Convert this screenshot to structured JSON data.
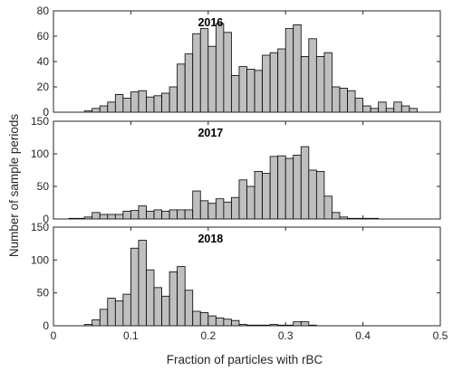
{
  "chart_data": {
    "type": "bar",
    "xlabel": "Fraction of particles with rBC",
    "ylabel": "Number of sample periods",
    "x_ticks": [
      0,
      0.1,
      0.2,
      0.3,
      0.4,
      0.5
    ],
    "xlim": [
      0,
      0.5
    ],
    "bin_width": 0.01,
    "panels": [
      {
        "title": "2016",
        "ylim": [
          0,
          80
        ],
        "y_ticks": [
          0,
          20,
          40,
          60,
          80
        ],
        "bin_starts": [
          0.04,
          0.05,
          0.06,
          0.07,
          0.08,
          0.09,
          0.1,
          0.11,
          0.12,
          0.13,
          0.14,
          0.15,
          0.16,
          0.17,
          0.18,
          0.19,
          0.2,
          0.21,
          0.22,
          0.23,
          0.24,
          0.25,
          0.26,
          0.27,
          0.28,
          0.29,
          0.3,
          0.31,
          0.32,
          0.33,
          0.34,
          0.35,
          0.36,
          0.37,
          0.38,
          0.39,
          0.4,
          0.41,
          0.42,
          0.43,
          0.44,
          0.45,
          0.46
        ],
        "values": [
          1,
          3,
          5,
          8,
          14,
          11,
          16,
          17,
          12,
          13,
          15,
          20,
          38,
          46,
          62,
          66,
          52,
          70,
          63,
          29,
          36,
          34,
          33,
          45,
          47,
          50,
          66,
          69,
          44,
          58,
          44,
          47,
          20,
          19,
          17,
          11,
          5,
          3,
          8,
          3,
          8,
          5,
          3
        ]
      },
      {
        "title": "2017",
        "ylim": [
          0,
          150
        ],
        "y_ticks": [
          0,
          50,
          100,
          150
        ],
        "bin_starts": [
          0.02,
          0.03,
          0.04,
          0.05,
          0.06,
          0.07,
          0.08,
          0.09,
          0.1,
          0.11,
          0.12,
          0.13,
          0.14,
          0.15,
          0.16,
          0.17,
          0.18,
          0.19,
          0.2,
          0.21,
          0.22,
          0.23,
          0.24,
          0.25,
          0.26,
          0.27,
          0.28,
          0.29,
          0.3,
          0.31,
          0.32,
          0.33,
          0.34,
          0.35,
          0.36,
          0.37,
          0.38,
          0.39,
          0.4,
          0.41
        ],
        "values": [
          1,
          1,
          3,
          10,
          7,
          7,
          7,
          12,
          13,
          20,
          12,
          14,
          12,
          14,
          14,
          14,
          43,
          28,
          24,
          31,
          26,
          33,
          60,
          50,
          73,
          70,
          96,
          97,
          93,
          98,
          111,
          75,
          73,
          35,
          10,
          3,
          1,
          1,
          1,
          1
        ]
      },
      {
        "title": "2018",
        "ylim": [
          0,
          150
        ],
        "y_ticks": [
          0,
          50,
          100,
          150
        ],
        "bin_starts": [
          0.04,
          0.05,
          0.06,
          0.07,
          0.08,
          0.09,
          0.1,
          0.11,
          0.12,
          0.13,
          0.14,
          0.15,
          0.16,
          0.17,
          0.18,
          0.19,
          0.2,
          0.21,
          0.22,
          0.23,
          0.24,
          0.25,
          0.26,
          0.27,
          0.28,
          0.29,
          0.3,
          0.31,
          0.32,
          0.33
        ],
        "values": [
          2,
          9,
          25,
          42,
          38,
          48,
          118,
          130,
          85,
          58,
          45,
          82,
          90,
          54,
          22,
          20,
          15,
          12,
          10,
          8,
          2,
          1,
          1,
          1,
          2,
          1,
          1,
          6,
          6,
          1
        ]
      }
    ]
  }
}
